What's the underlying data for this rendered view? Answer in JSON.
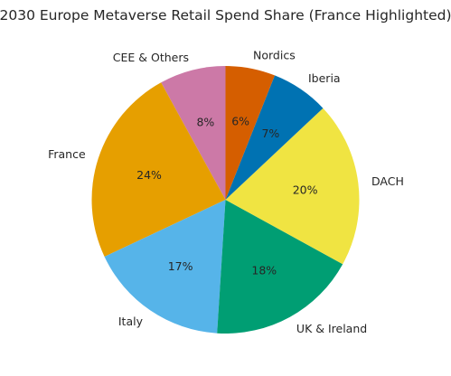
{
  "chart_data": {
    "type": "pie",
    "title": "2030 Europe Metaverse Retail Spend Share (France Highlighted)",
    "start_angle_deg": 90,
    "direction": "counterclockwise",
    "slices": [
      {
        "label": "CEE & Others",
        "value": 8,
        "pct_label": "8%",
        "color": "#CC79A7"
      },
      {
        "label": "France",
        "value": 24,
        "pct_label": "24%",
        "color": "#E69F00"
      },
      {
        "label": "Italy",
        "value": 17,
        "pct_label": "17%",
        "color": "#56B4E9"
      },
      {
        "label": "UK & Ireland",
        "value": 18,
        "pct_label": "18%",
        "color": "#009E73"
      },
      {
        "label": "DACH",
        "value": 20,
        "pct_label": "20%",
        "color": "#F0E442"
      },
      {
        "label": "Iberia",
        "value": 7,
        "pct_label": "7%",
        "color": "#0072B2"
      },
      {
        "label": "Nordics",
        "value": 6,
        "pct_label": "6%",
        "color": "#D55E00"
      }
    ]
  }
}
